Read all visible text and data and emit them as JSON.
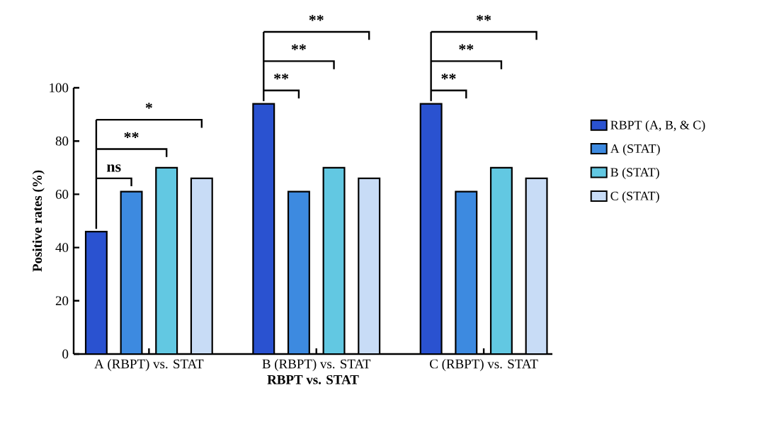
{
  "chart_data": {
    "type": "bar",
    "xlabel": "RBPT vs. STAT",
    "ylabel": "Positive rates (%)",
    "categories": [
      "A (RBPT) vs. STAT",
      "B (RBPT) vs. STAT",
      "C (RBPT) vs. STAT"
    ],
    "series": [
      {
        "name": "RBPT (A, B, & C)",
        "color": "#2a52d0",
        "values": [
          46,
          94,
          94
        ]
      },
      {
        "name": "A (STAT)",
        "color": "#3d8ae0",
        "values": [
          61,
          61,
          61
        ]
      },
      {
        "name": "B (STAT)",
        "color": "#62c8e2",
        "values": [
          70,
          70,
          70
        ]
      },
      {
        "name": "C (STAT)",
        "color": "#c8dcf6",
        "values": [
          66,
          66,
          66
        ]
      }
    ],
    "ylim": [
      0,
      100
    ],
    "yticks": [
      0,
      20,
      40,
      60,
      80,
      100
    ],
    "grid": false,
    "legend": "right",
    "annotations": [
      "ns",
      "**",
      "*",
      "**",
      "**",
      "**",
      "**",
      "**",
      "**"
    ]
  }
}
